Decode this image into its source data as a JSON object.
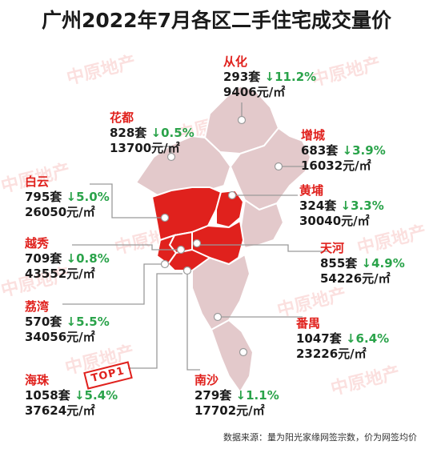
{
  "title": "广州2022年7月各区二手住宅成交量价",
  "top_badge": "TOP1",
  "source_note": "数据来源：量为阳光家缘网签宗数，价为网签均价",
  "watermark_text": "中原地产",
  "colors": {
    "highlight": "#e0211d",
    "outer_district": "#e3c9cb",
    "down_arrow": "#2aa34a",
    "district_name": "#e0211d"
  },
  "districts": [
    {
      "name": "从化",
      "count": "293套",
      "change": "↓11.2%",
      "price": "9406元/㎡"
    },
    {
      "name": "花都",
      "count": "828套",
      "change": "↓0.5%",
      "price": "13700元/㎡"
    },
    {
      "name": "增城",
      "count": "683套",
      "change": "↓3.9%",
      "price": "16032元/㎡"
    },
    {
      "name": "白云",
      "count": "795套",
      "change": "↓5.0%",
      "price": "26050元/㎡"
    },
    {
      "name": "黄埔",
      "count": "324套",
      "change": "↓3.3%",
      "price": "30040元/㎡"
    },
    {
      "name": "越秀",
      "count": "709套",
      "change": "↓0.8%",
      "price": "43552元/㎡"
    },
    {
      "name": "天河",
      "count": "855套",
      "change": "↓4.9%",
      "price": "54226元/㎡"
    },
    {
      "name": "荔湾",
      "count": "570套",
      "change": "↓5.5%",
      "price": "34056元/㎡"
    },
    {
      "name": "番禺",
      "count": "1047套",
      "change": "↓6.4%",
      "price": "23226元/㎡"
    },
    {
      "name": "海珠",
      "count": "1058套",
      "change": "↓5.4%",
      "price": "37624元/㎡"
    },
    {
      "name": "南沙",
      "count": "279套",
      "change": "↓1.1%",
      "price": "17702元/㎡"
    }
  ]
}
